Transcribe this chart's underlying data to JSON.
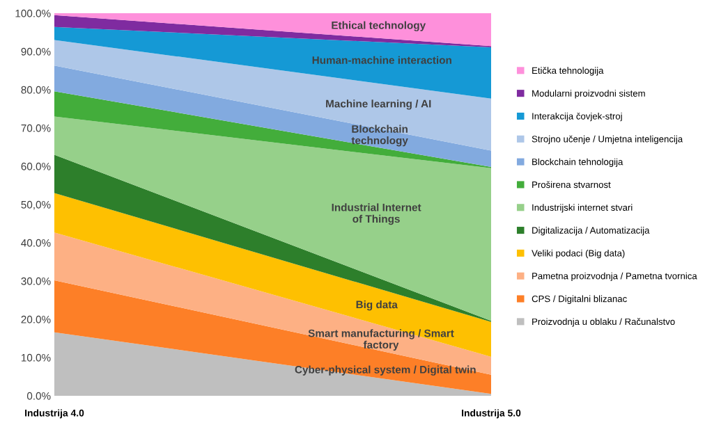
{
  "chart_data": {
    "type": "area",
    "stacked": true,
    "categories": [
      "Industrija 4.0",
      "Industrija 5.0"
    ],
    "series": [
      {
        "name": "Proizvodnja u oblaku / Računalstvo",
        "color": "#bfbfbf",
        "values": [
          16.6,
          0.5
        ]
      },
      {
        "name": "CPS / Digitalni blizanac",
        "color": "#fd7f27",
        "values": [
          13.6,
          5.0
        ]
      },
      {
        "name": "Pametna proizvodnja / Pametna tvornica",
        "color": "#fdb084",
        "values": [
          12.5,
          4.7
        ]
      },
      {
        "name": "Veliki podaci (Big data)",
        "color": "#fec001",
        "values": [
          10.3,
          9.1
        ]
      },
      {
        "name": "Digitalizacija / Automatizacija",
        "color": "#2d7f2b",
        "values": [
          10.0,
          0.3
        ]
      },
      {
        "name": "Industrijski internet stvari",
        "color": "#96d08a",
        "values": [
          10.0,
          39.9
        ]
      },
      {
        "name": "Proširena stvarnost",
        "color": "#43ad3b",
        "values": [
          6.6,
          0.3
        ]
      },
      {
        "name": "Blockchain tehnologija",
        "color": "#82aadf",
        "values": [
          6.7,
          4.3
        ]
      },
      {
        "name": "Strojno učenje / Umjetna inteligencija",
        "color": "#aec7e8",
        "values": [
          6.7,
          13.6
        ]
      },
      {
        "name": "Interakcija čovjek-stroj",
        "color": "#1599d5",
        "values": [
          3.4,
          13.4
        ]
      },
      {
        "name": "Modularni proizvodni sistem",
        "color": "#7f2ba0",
        "values": [
          3.1,
          0.3
        ]
      },
      {
        "name": "Etička tehnologija",
        "color": "#fe90db",
        "values": [
          0.5,
          8.6
        ]
      }
    ],
    "ylim": [
      0,
      100
    ],
    "yticks": [
      {
        "value": 0,
        "label": "0.0%"
      },
      {
        "value": 10,
        "label": "10.0%"
      },
      {
        "value": 20,
        "label": "20.0%"
      },
      {
        "value": 30,
        "label": "30.0%"
      },
      {
        "value": 40,
        "label": "40.0%"
      },
      {
        "value": 50,
        "label": "50,0%"
      },
      {
        "value": 60,
        "label": "60.0%"
      },
      {
        "value": 70,
        "label": "70.0%"
      },
      {
        "value": 80,
        "label": "80.0%"
      },
      {
        "value": 90,
        "label": "90.0%"
      },
      {
        "value": 100,
        "label": "100.0%"
      }
    ],
    "annotations": [
      "Ethical technology",
      "Human-machine interaction",
      "Machine learning / AI",
      "Blockchain\ntechnology",
      "Industrial Internet\nof Things",
      "Big data",
      "Smart manufacturing / Smart\nfactory",
      "Cyber-physical system / Digital twin"
    ],
    "legend": "right",
    "grid": false
  }
}
